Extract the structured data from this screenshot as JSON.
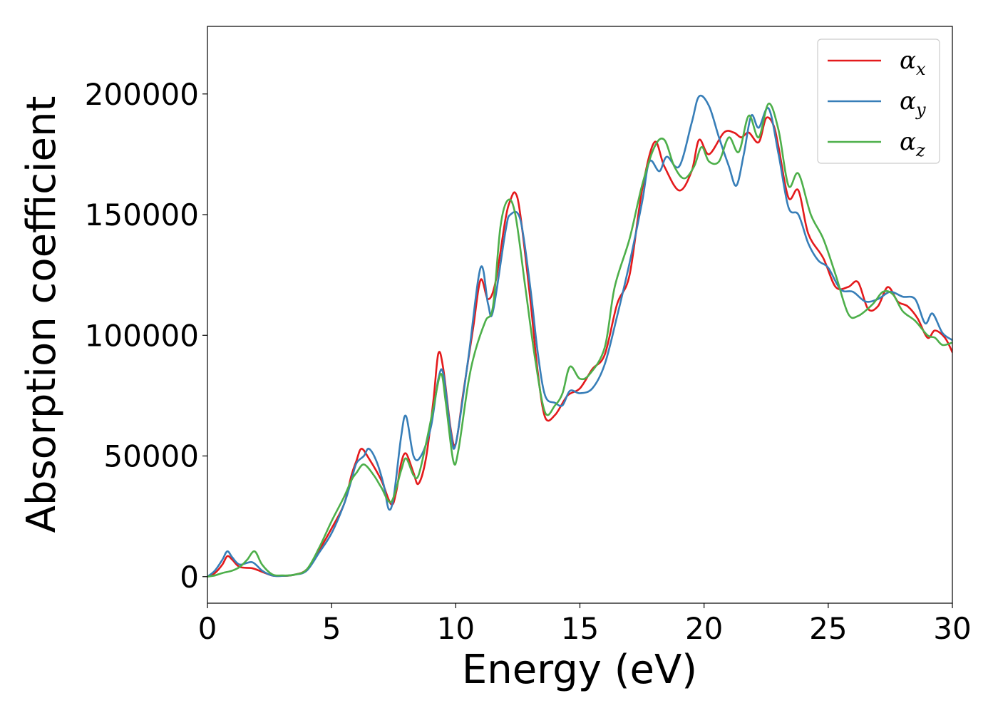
{
  "chart_data": {
    "type": "line",
    "title": "",
    "xlabel": "Energy (eV)",
    "ylabel": "Absorption coefficient",
    "xlim": [
      0,
      30
    ],
    "ylim": [
      -11000,
      228000
    ],
    "xticks": [
      0,
      5,
      10,
      15,
      20,
      25,
      30
    ],
    "xtick_labels": [
      "0",
      "5",
      "10",
      "15",
      "20",
      "25",
      "30"
    ],
    "yticks": [
      0,
      50000,
      100000,
      150000,
      200000
    ],
    "ytick_labels": [
      "0",
      "50000",
      "100000",
      "150000",
      "200000"
    ],
    "grid": false,
    "legend_position": "top-right",
    "series": [
      {
        "name": "αx",
        "legend_base": "α",
        "legend_sub": "x",
        "color": "#e41a1c",
        "points": [
          [
            0,
            0
          ],
          [
            0.3,
            1500
          ],
          [
            0.6,
            5000
          ],
          [
            0.8,
            8500
          ],
          [
            1.0,
            7000
          ],
          [
            1.3,
            4000
          ],
          [
            1.8,
            3500
          ],
          [
            2.2,
            2000
          ],
          [
            2.6,
            500
          ],
          [
            3.0,
            300
          ],
          [
            3.5,
            800
          ],
          [
            4.0,
            3000
          ],
          [
            4.5,
            11000
          ],
          [
            5.0,
            20000
          ],
          [
            5.5,
            30000
          ],
          [
            5.8,
            42000
          ],
          [
            6.0,
            48000
          ],
          [
            6.2,
            53000
          ],
          [
            6.5,
            49000
          ],
          [
            7.0,
            40000
          ],
          [
            7.4,
            30000
          ],
          [
            7.6,
            35000
          ],
          [
            7.8,
            47000
          ],
          [
            8.0,
            51000
          ],
          [
            8.3,
            43000
          ],
          [
            8.5,
            38500
          ],
          [
            8.8,
            49000
          ],
          [
            9.1,
            73000
          ],
          [
            9.3,
            92500
          ],
          [
            9.5,
            86000
          ],
          [
            9.8,
            61000
          ],
          [
            10.0,
            55000
          ],
          [
            10.3,
            76000
          ],
          [
            10.7,
            103000
          ],
          [
            11.0,
            123000
          ],
          [
            11.3,
            115000
          ],
          [
            11.6,
            122000
          ],
          [
            12.0,
            148000
          ],
          [
            12.2,
            156000
          ],
          [
            12.4,
            159000
          ],
          [
            12.6,
            150000
          ],
          [
            13.0,
            115000
          ],
          [
            13.3,
            85000
          ],
          [
            13.6,
            66000
          ],
          [
            14.0,
            67000
          ],
          [
            14.5,
            75000
          ],
          [
            15.0,
            78000
          ],
          [
            15.5,
            86000
          ],
          [
            16.0,
            92000
          ],
          [
            16.5,
            113000
          ],
          [
            17.0,
            125000
          ],
          [
            17.5,
            160000
          ],
          [
            18.0,
            180000
          ],
          [
            18.4,
            170000
          ],
          [
            19.0,
            160000
          ],
          [
            19.5,
            168000
          ],
          [
            19.8,
            181000
          ],
          [
            20.2,
            175000
          ],
          [
            20.8,
            184000
          ],
          [
            21.2,
            184000
          ],
          [
            21.5,
            182000
          ],
          [
            21.8,
            184000
          ],
          [
            22.2,
            180000
          ],
          [
            22.5,
            190000
          ],
          [
            22.8,
            187000
          ],
          [
            23.0,
            178000
          ],
          [
            23.4,
            157000
          ],
          [
            23.8,
            160000
          ],
          [
            24.2,
            142000
          ],
          [
            24.8,
            132000
          ],
          [
            25.3,
            120000
          ],
          [
            25.8,
            120000
          ],
          [
            26.2,
            122000
          ],
          [
            26.6,
            111000
          ],
          [
            27.0,
            112000
          ],
          [
            27.4,
            120000
          ],
          [
            27.8,
            114000
          ],
          [
            28.2,
            112000
          ],
          [
            28.6,
            107000
          ],
          [
            29.0,
            99000
          ],
          [
            29.3,
            102000
          ],
          [
            29.7,
            99000
          ],
          [
            30.0,
            93000
          ]
        ]
      },
      {
        "name": "αy",
        "legend_base": "α",
        "legend_sub": "y",
        "color": "#377eb8",
        "points": [
          [
            0,
            0
          ],
          [
            0.3,
            2500
          ],
          [
            0.6,
            7000
          ],
          [
            0.8,
            10500
          ],
          [
            1.0,
            8000
          ],
          [
            1.3,
            5000
          ],
          [
            1.8,
            6000
          ],
          [
            2.2,
            2500
          ],
          [
            2.6,
            500
          ],
          [
            3.0,
            300
          ],
          [
            3.5,
            800
          ],
          [
            4.0,
            2500
          ],
          [
            4.5,
            10000
          ],
          [
            5.0,
            18000
          ],
          [
            5.5,
            30000
          ],
          [
            5.8,
            40000
          ],
          [
            6.0,
            47000
          ],
          [
            6.3,
            50000
          ],
          [
            6.5,
            53000
          ],
          [
            6.8,
            48000
          ],
          [
            7.1,
            38000
          ],
          [
            7.3,
            28000
          ],
          [
            7.5,
            33000
          ],
          [
            7.8,
            58000
          ],
          [
            8.0,
            66500
          ],
          [
            8.3,
            50000
          ],
          [
            8.6,
            50000
          ],
          [
            9.0,
            62000
          ],
          [
            9.3,
            82000
          ],
          [
            9.5,
            84000
          ],
          [
            9.8,
            60000
          ],
          [
            10.0,
            55000
          ],
          [
            10.5,
            90000
          ],
          [
            11.0,
            128000
          ],
          [
            11.3,
            113000
          ],
          [
            11.5,
            110000
          ],
          [
            12.0,
            143000
          ],
          [
            12.2,
            150000
          ],
          [
            12.6,
            148000
          ],
          [
            13.0,
            120000
          ],
          [
            13.3,
            93000
          ],
          [
            13.6,
            75000
          ],
          [
            14.0,
            72000
          ],
          [
            14.3,
            71000
          ],
          [
            14.6,
            77000
          ],
          [
            15.0,
            76000
          ],
          [
            15.5,
            78000
          ],
          [
            16.0,
            88000
          ],
          [
            16.5,
            108000
          ],
          [
            17.0,
            130000
          ],
          [
            17.5,
            155000
          ],
          [
            17.8,
            172000
          ],
          [
            18.2,
            168000
          ],
          [
            18.5,
            174000
          ],
          [
            19.0,
            170000
          ],
          [
            19.5,
            188000
          ],
          [
            19.8,
            199000
          ],
          [
            20.2,
            195000
          ],
          [
            20.6,
            182000
          ],
          [
            21.0,
            170000
          ],
          [
            21.3,
            162000
          ],
          [
            21.6,
            175000
          ],
          [
            21.9,
            191000
          ],
          [
            22.2,
            186000
          ],
          [
            22.6,
            194000
          ],
          [
            23.0,
            175000
          ],
          [
            23.4,
            153000
          ],
          [
            23.8,
            150000
          ],
          [
            24.2,
            138000
          ],
          [
            24.6,
            131000
          ],
          [
            25.0,
            128000
          ],
          [
            25.5,
            119000
          ],
          [
            26.0,
            118000
          ],
          [
            26.5,
            114000
          ],
          [
            27.0,
            115000
          ],
          [
            27.5,
            118000
          ],
          [
            28.0,
            116000
          ],
          [
            28.5,
            115000
          ],
          [
            28.9,
            105000
          ],
          [
            29.2,
            109000
          ],
          [
            29.6,
            101000
          ],
          [
            30.0,
            98000
          ]
        ]
      },
      {
        "name": "αz",
        "legend_base": "α",
        "legend_sub": "z",
        "color": "#4daf4a",
        "points": [
          [
            0,
            0
          ],
          [
            0.3,
            500
          ],
          [
            0.6,
            1500
          ],
          [
            1.0,
            2500
          ],
          [
            1.3,
            4000
          ],
          [
            1.6,
            7000
          ],
          [
            1.9,
            10500
          ],
          [
            2.2,
            5000
          ],
          [
            2.6,
            1000
          ],
          [
            3.0,
            500
          ],
          [
            3.5,
            800
          ],
          [
            4.0,
            3000
          ],
          [
            4.5,
            12000
          ],
          [
            5.0,
            23000
          ],
          [
            5.5,
            33000
          ],
          [
            5.8,
            40000
          ],
          [
            6.0,
            43000
          ],
          [
            6.3,
            46500
          ],
          [
            6.7,
            42000
          ],
          [
            7.0,
            37000
          ],
          [
            7.4,
            31000
          ],
          [
            7.8,
            44000
          ],
          [
            8.0,
            49000
          ],
          [
            8.3,
            42000
          ],
          [
            8.5,
            42000
          ],
          [
            8.8,
            55000
          ],
          [
            9.1,
            70000
          ],
          [
            9.4,
            84000
          ],
          [
            9.6,
            72000
          ],
          [
            9.9,
            48000
          ],
          [
            10.1,
            52000
          ],
          [
            10.5,
            80000
          ],
          [
            10.8,
            94000
          ],
          [
            11.2,
            106000
          ],
          [
            11.5,
            112000
          ],
          [
            11.8,
            145000
          ],
          [
            12.1,
            156000
          ],
          [
            12.4,
            150000
          ],
          [
            12.8,
            120000
          ],
          [
            13.2,
            90000
          ],
          [
            13.6,
            68000
          ],
          [
            14.0,
            71000
          ],
          [
            14.3,
            76000
          ],
          [
            14.6,
            87000
          ],
          [
            15.0,
            82000
          ],
          [
            15.4,
            84000
          ],
          [
            16.0,
            95000
          ],
          [
            16.4,
            120000
          ],
          [
            17.0,
            140000
          ],
          [
            17.5,
            162000
          ],
          [
            18.0,
            178000
          ],
          [
            18.4,
            181000
          ],
          [
            18.8,
            170000
          ],
          [
            19.2,
            165000
          ],
          [
            19.6,
            170000
          ],
          [
            19.9,
            178000
          ],
          [
            20.2,
            172000
          ],
          [
            20.6,
            172000
          ],
          [
            21.0,
            182000
          ],
          [
            21.4,
            176000
          ],
          [
            21.8,
            191000
          ],
          [
            22.2,
            182000
          ],
          [
            22.6,
            196000
          ],
          [
            23.0,
            185000
          ],
          [
            23.4,
            162000
          ],
          [
            23.8,
            167000
          ],
          [
            24.3,
            150000
          ],
          [
            24.8,
            140000
          ],
          [
            25.3,
            125000
          ],
          [
            25.8,
            109000
          ],
          [
            26.2,
            108000
          ],
          [
            26.8,
            113000
          ],
          [
            27.2,
            118000
          ],
          [
            27.6,
            117000
          ],
          [
            28.0,
            110000
          ],
          [
            28.5,
            106000
          ],
          [
            29.0,
            100000
          ],
          [
            29.3,
            99000
          ],
          [
            29.6,
            96000
          ],
          [
            30.0,
            97000
          ]
        ]
      }
    ]
  }
}
